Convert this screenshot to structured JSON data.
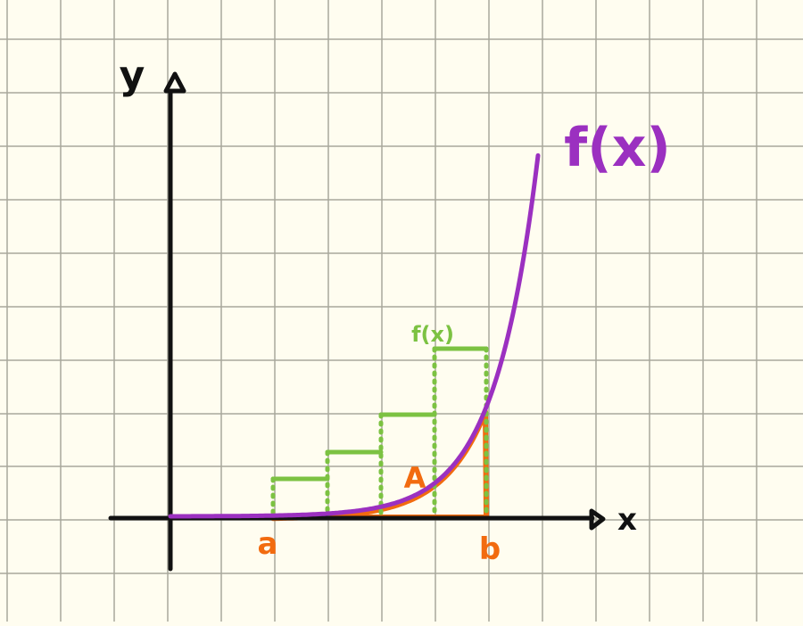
{
  "labels": {
    "y_axis": "y",
    "x_axis": "x",
    "curve": "f(x)",
    "riemann": "f(x)",
    "area": "A",
    "a": "a",
    "b": "b"
  },
  "colors": {
    "paper": "#fffdf0",
    "grid": "#a8a89c",
    "axis": "#111111",
    "curve": "#9b30c0",
    "area": "#f26b0f",
    "riemann": "#7cc242"
  },
  "icons": {
    "y_arrow": "triangle-up-arrowhead",
    "x_arrow": "triangle-right-arrowhead"
  }
}
